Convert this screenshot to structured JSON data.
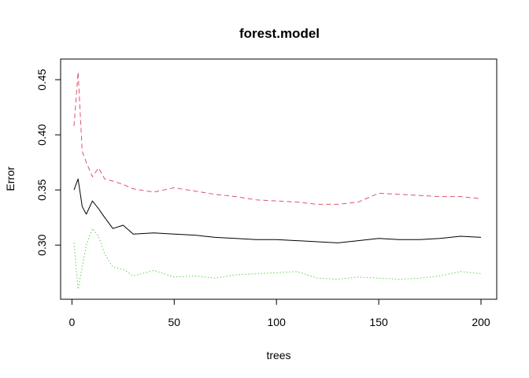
{
  "chart_data": {
    "type": "line",
    "title": "forest.model",
    "xlabel": "trees",
    "ylabel": "Error",
    "xlim": [
      1,
      200
    ],
    "ylim": [
      0.258,
      0.458
    ],
    "x_ticks": [
      0,
      50,
      100,
      150,
      200
    ],
    "x_tick_labels": [
      "0",
      "50",
      "100",
      "150",
      "200"
    ],
    "y_ticks": [
      0.3,
      0.35,
      0.4,
      0.45
    ],
    "y_tick_labels": [
      "0.30",
      "0.35",
      "0.40",
      "0.45"
    ],
    "grid": false,
    "legend": "none",
    "x": [
      1,
      3,
      5,
      7,
      10,
      13,
      16,
      20,
      25,
      30,
      40,
      50,
      60,
      70,
      80,
      90,
      100,
      110,
      120,
      130,
      140,
      150,
      160,
      170,
      180,
      190,
      200
    ],
    "series": [
      {
        "color": "#000000",
        "line_style": "solid",
        "values": [
          0.35,
          0.36,
          0.335,
          0.328,
          0.34,
          0.333,
          0.325,
          0.315,
          0.318,
          0.31,
          0.311,
          0.31,
          0.309,
          0.307,
          0.306,
          0.305,
          0.305,
          0.304,
          0.303,
          0.302,
          0.304,
          0.306,
          0.305,
          0.305,
          0.306,
          0.308,
          0.307
        ]
      },
      {
        "color": "#DF536B",
        "line_style": "dashed",
        "values": [
          0.408,
          0.457,
          0.385,
          0.375,
          0.362,
          0.37,
          0.36,
          0.358,
          0.355,
          0.351,
          0.348,
          0.352,
          0.349,
          0.346,
          0.344,
          0.341,
          0.34,
          0.339,
          0.337,
          0.337,
          0.339,
          0.347,
          0.346,
          0.345,
          0.344,
          0.344,
          0.342
        ]
      },
      {
        "color": "#61D04F",
        "line_style": "dotted",
        "values": [
          0.302,
          0.26,
          0.28,
          0.3,
          0.315,
          0.308,
          0.292,
          0.28,
          0.278,
          0.272,
          0.277,
          0.271,
          0.272,
          0.27,
          0.273,
          0.274,
          0.275,
          0.276,
          0.27,
          0.269,
          0.271,
          0.27,
          0.269,
          0.27,
          0.272,
          0.276,
          0.274
        ]
      }
    ]
  }
}
